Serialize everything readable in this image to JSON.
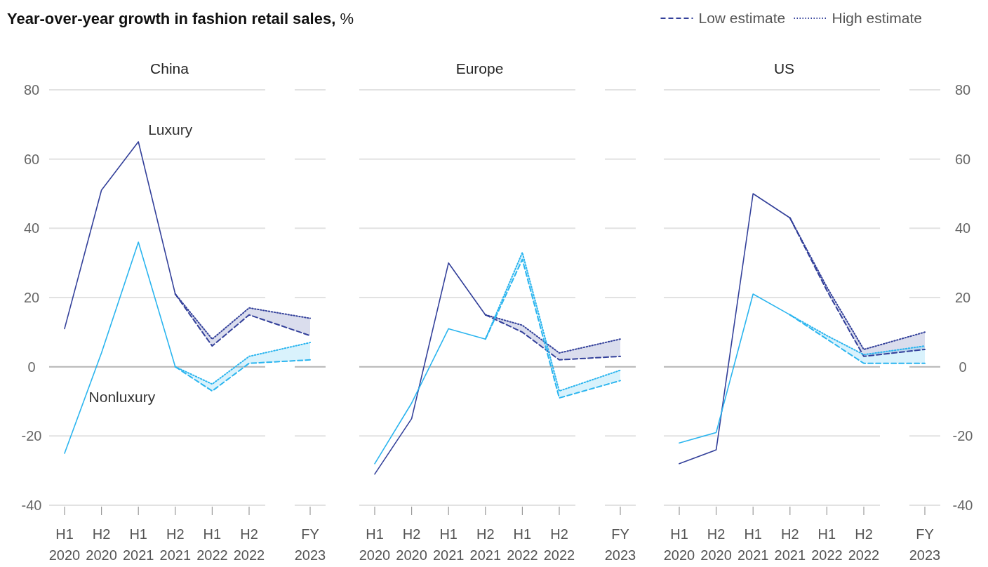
{
  "chart_data": [
    {
      "type": "line",
      "title": "China",
      "annotations": [
        "Year-over-year growth in fashion retail sales, %"
      ],
      "categories": [
        "H1 2020",
        "H2 2020",
        "H1 2021",
        "H2 2021",
        "H1 2022",
        "H2 2022",
        "FY 2023"
      ],
      "ylim": [
        -40,
        80
      ],
      "yticks": [
        -40,
        -20,
        0,
        20,
        40,
        60,
        80
      ],
      "grid": "y",
      "legend": "top right",
      "series": [
        {
          "name": "Luxury",
          "color": "#33409a",
          "line_style": "solid",
          "values": [
            11,
            51,
            65,
            21,
            null,
            null,
            null
          ]
        },
        {
          "name": "Nonluxury",
          "color": "#2bb5ef",
          "line_style": "solid",
          "values": [
            -25,
            4,
            36,
            0,
            null,
            null,
            null
          ]
        },
        {
          "name": "Low estimate",
          "color": "#33409a",
          "line_style": "dashed",
          "values": [
            null,
            null,
            null,
            21,
            6,
            15,
            9
          ]
        },
        {
          "name": "High estimate",
          "color": "#33409a",
          "line_style": "dotted",
          "values": [
            null,
            null,
            null,
            21,
            8,
            17,
            14
          ],
          "lower": [
            null,
            null,
            null,
            21,
            6,
            15,
            9
          ],
          "upper": [
            null,
            null,
            null,
            21,
            8,
            17,
            14
          ]
        },
        {
          "color": "#2bb5ef",
          "line_style": "dashed",
          "values": [
            null,
            null,
            null,
            0,
            -7,
            1,
            2
          ]
        },
        {
          "color": "#2bb5ef",
          "line_style": "dotted",
          "values": [
            null,
            null,
            null,
            0,
            -5,
            3,
            7
          ],
          "lower": [
            null,
            null,
            null,
            0,
            -7,
            1,
            2
          ],
          "upper": [
            null,
            null,
            null,
            0,
            -5,
            3,
            7
          ]
        }
      ]
    },
    {
      "type": "line",
      "title": "Europe",
      "categories": [
        "H1 2020",
        "H2 2020",
        "H1 2021",
        "H2 2021",
        "H1 2022",
        "H2 2022",
        "FY 2023"
      ],
      "ylim": [
        -40,
        80
      ],
      "yticks": [
        -40,
        -20,
        0,
        20,
        40,
        60,
        80
      ],
      "grid": "y",
      "tick_labels": "x",
      "series": [
        {
          "color": "#33409a",
          "line_style": "solid",
          "values": [
            -31,
            -15,
            30,
            15,
            null,
            null,
            null
          ]
        },
        {
          "color": "#2bb5ef",
          "line_style": "solid",
          "values": [
            -28,
            -10.5,
            11,
            8,
            null,
            null,
            null
          ]
        },
        {
          "color": "#33409a",
          "line_style": "dashed",
          "values": [
            null,
            null,
            null,
            15,
            10,
            2,
            3
          ]
        },
        {
          "color": "#33409a",
          "line_style": "dotted",
          "values": [
            null,
            null,
            null,
            15,
            12,
            4,
            8
          ],
          "lower": [
            null,
            null,
            null,
            15,
            10,
            2,
            3
          ],
          "upper": [
            null,
            null,
            null,
            15,
            12,
            4,
            8
          ]
        },
        {
          "color": "#2bb5ef",
          "line_style": "dashed",
          "values": [
            null,
            null,
            null,
            8,
            31,
            -9,
            -4
          ]
        },
        {
          "color": "#2bb5ef",
          "line_style": "dotted",
          "values": [
            null,
            null,
            null,
            8,
            33,
            -7,
            -1
          ],
          "lower": [
            null,
            null,
            null,
            8,
            31,
            -9,
            -4
          ],
          "upper": [
            null,
            null,
            null,
            8,
            33,
            -7,
            -1
          ]
        }
      ]
    },
    {
      "type": "line",
      "title": "US",
      "categories": [
        "H1 2020",
        "H2 2020",
        "H1 2021",
        "H2 2021",
        "H1 2022",
        "H2 2022",
        "FY 2023"
      ],
      "ylim": [
        -40,
        80
      ],
      "yticks": [
        -40,
        -20,
        0,
        20,
        40,
        60,
        80
      ],
      "grid": "y",
      "series": [
        {
          "color": "#33409a",
          "line_style": "solid",
          "values": [
            -28,
            -24,
            50,
            43,
            null,
            null,
            null
          ]
        },
        {
          "color": "#2bb5ef",
          "line_style": "solid",
          "values": [
            -22,
            -19,
            21,
            15,
            null,
            null,
            null
          ]
        },
        {
          "color": "#33409a",
          "line_style": "dashed",
          "values": [
            null,
            null,
            null,
            43,
            22,
            3,
            5
          ]
        },
        {
          "color": "#33409a",
          "line_style": "dotted",
          "values": [
            null,
            null,
            null,
            43,
            23,
            5,
            10
          ],
          "lower": [
            null,
            null,
            null,
            43,
            22,
            3,
            5
          ],
          "upper": [
            null,
            null,
            null,
            43,
            23,
            5,
            10
          ]
        },
        {
          "color": "#2bb5ef",
          "line_style": "dashed",
          "values": [
            null,
            null,
            null,
            15,
            8,
            1,
            1
          ]
        },
        {
          "color": "#2bb5ef",
          "line_style": "dotted",
          "values": [
            null,
            null,
            null,
            15,
            9,
            3.5,
            6
          ],
          "lower": [
            null,
            null,
            null,
            15,
            8,
            1,
            1
          ],
          "upper": [
            null,
            null,
            null,
            15,
            9,
            3.5,
            6
          ]
        }
      ]
    }
  ]
}
